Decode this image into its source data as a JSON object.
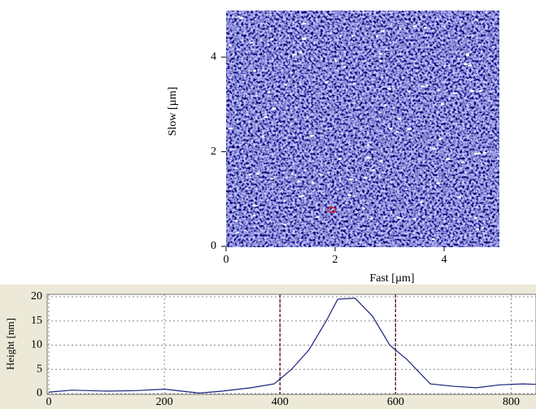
{
  "chart_data": [
    {
      "type": "image",
      "xlabel": "Fast [µm]",
      "ylabel": "Slow [µm]",
      "xlim": [
        0,
        5
      ],
      "ylim": [
        0,
        5
      ],
      "xticks": [
        0,
        2,
        4
      ],
      "yticks": [
        0,
        2,
        4
      ]
    },
    {
      "type": "line",
      "ylabel": "Height [nm]",
      "color": "#1a237e",
      "marker_color": "#5a1010",
      "x": [
        0,
        40,
        100,
        150,
        200,
        230,
        260,
        300,
        350,
        390,
        420,
        450,
        480,
        500,
        530,
        560,
        590,
        620,
        660,
        700,
        740,
        780,
        820,
        843
      ],
      "values": [
        0.3,
        0.7,
        0.5,
        0.6,
        0.9,
        0.5,
        0.1,
        0.5,
        1.2,
        2,
        5,
        9,
        15,
        19.5,
        19.7,
        16,
        10,
        7,
        2,
        1.5,
        1.2,
        1.8,
        2,
        1.9
      ],
      "markers": [
        400,
        600
      ],
      "xlim": [
        0,
        843
      ],
      "ylim": [
        0,
        20.5
      ],
      "xticks": [
        0,
        200,
        400,
        600,
        800
      ],
      "yticks": [
        0,
        5,
        10,
        15,
        20
      ],
      "grid": true
    }
  ]
}
